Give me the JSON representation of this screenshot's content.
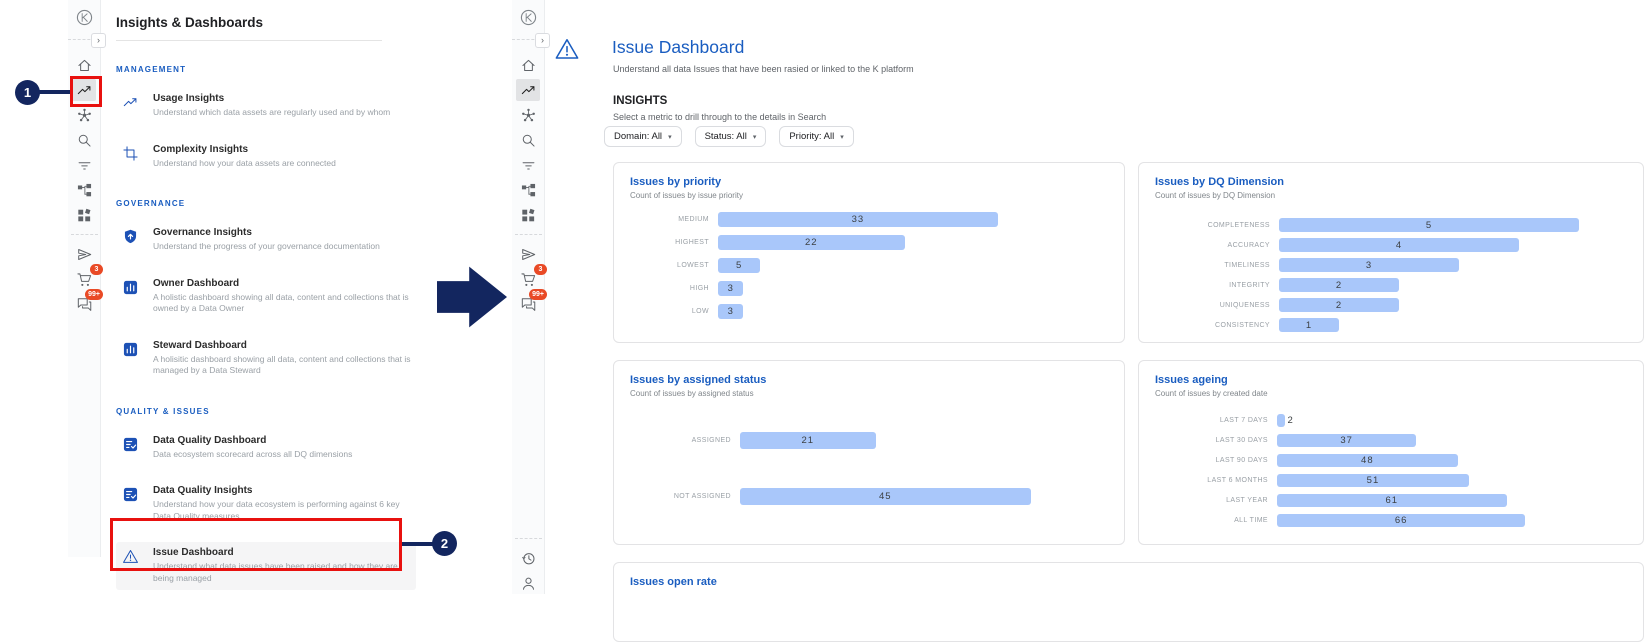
{
  "colors": {
    "accent_blue": "#1a5dc0",
    "menu_icon_blue": "#1d51b5",
    "bar_blue": "#a9c7fa",
    "navy": "#13265f",
    "annotation_red": "#e8110f",
    "badge_orange": "#e94a26"
  },
  "annotations": {
    "step_1": "1",
    "step_2": "2"
  },
  "left_screen": {
    "rail": {
      "items": [
        {
          "icon": "k-logo"
        },
        {
          "icon": "expand"
        },
        {
          "icon": "home"
        },
        {
          "icon": "trending",
          "active": true
        },
        {
          "icon": "hub"
        },
        {
          "icon": "search"
        },
        {
          "icon": "filter"
        },
        {
          "icon": "tree"
        },
        {
          "icon": "apps"
        },
        {
          "icon": "divider"
        },
        {
          "icon": "send"
        },
        {
          "icon": "cart",
          "badge": "3"
        },
        {
          "icon": "chat",
          "badge": "99+"
        }
      ]
    },
    "panel": {
      "title": "Insights & Dashboards",
      "sections": [
        {
          "header": "MANAGEMENT",
          "items": [
            {
              "icon": "trending",
              "title": "Usage Insights",
              "desc": "Understand which data assets are regularly used and by whom"
            },
            {
              "icon": "crop",
              "title": "Complexity Insights",
              "desc": "Understand how your data assets are connected"
            }
          ]
        },
        {
          "header": "GOVERNANCE",
          "items": [
            {
              "icon": "shield",
              "title": "Governance Insights",
              "desc": "Understand the progress of your governance documentation"
            },
            {
              "icon": "chart",
              "title": "Owner Dashboard",
              "desc": "A holistic dashboard showing all data, content and collections that is owned by a Data Owner"
            },
            {
              "icon": "chart",
              "title": "Steward Dashboard",
              "desc": "A holisitic dashboard showing all data, content and collections that is managed by a Data Steward"
            }
          ]
        },
        {
          "header": "QUALITY & ISSUES",
          "items": [
            {
              "icon": "checklist",
              "title": "Data Quality Dashboard",
              "desc": "Data ecosystem scorecard across all DQ dimensions"
            },
            {
              "icon": "checklist",
              "title": "Data Quality Insights",
              "desc": "Understand how your data ecosystem is performing against 6 key Data Quality measures"
            },
            {
              "icon": "warning",
              "title": "Issue Dashboard",
              "desc": "Understand what data issues have been raised and how they are being managed",
              "highlighted": true
            }
          ]
        }
      ]
    }
  },
  "right_screen": {
    "rail": {
      "items": [
        {
          "icon": "k-logo"
        },
        {
          "icon": "expand"
        },
        {
          "icon": "home"
        },
        {
          "icon": "trending",
          "active": true
        },
        {
          "icon": "hub"
        },
        {
          "icon": "search"
        },
        {
          "icon": "filter"
        },
        {
          "icon": "tree"
        },
        {
          "icon": "apps"
        },
        {
          "icon": "divider"
        },
        {
          "icon": "send"
        },
        {
          "icon": "cart",
          "badge": "3"
        },
        {
          "icon": "chat",
          "badge": "99+"
        },
        {
          "icon": "spacer"
        },
        {
          "icon": "divider"
        },
        {
          "icon": "history"
        },
        {
          "icon": "person"
        }
      ]
    },
    "page": {
      "title": "Issue Dashboard",
      "subtitle": "Understand all data Issues that have been rasied or linked to the K platform",
      "section_heading": "INSIGHTS",
      "section_subheading": "Select a metric to drill through to the details in Search",
      "filters": [
        "Domain: All",
        "Status: All",
        "Priority: All"
      ],
      "filter_caret": "▾"
    }
  },
  "chart_data": [
    {
      "type": "bar",
      "orientation": "horizontal",
      "title": "Issues by priority",
      "subtitle": "Count of issues by issue priority",
      "categories": [
        "MEDIUM",
        "HIGHEST",
        "LOWEST",
        "HIGH",
        "LOW"
      ],
      "values": [
        33,
        22,
        5,
        3,
        3
      ],
      "xlim": [
        0,
        46
      ],
      "grid": false,
      "legend": "none"
    },
    {
      "type": "bar",
      "orientation": "horizontal",
      "title": "Issues by DQ Dimension",
      "subtitle": "Count of issues by DQ Dimension",
      "categories": [
        "COMPLETENESS",
        "ACCURACY",
        "TIMELINESS",
        "INTEGRITY",
        "UNIQUENESS",
        "CONSISTENCY"
      ],
      "values": [
        5,
        4,
        3,
        2,
        2,
        1
      ],
      "xlim": [
        0,
        5.8
      ],
      "grid": false,
      "legend": "none"
    },
    {
      "type": "bar",
      "orientation": "horizontal",
      "title": "Issues by assigned status",
      "subtitle": "Count of issues by assigned status",
      "categories": [
        "ASSIGNED",
        "NOT ASSIGNED"
      ],
      "values": [
        21,
        45
      ],
      "xlim": [
        0,
        57
      ],
      "grid": false,
      "legend": "none"
    },
    {
      "type": "bar",
      "orientation": "horizontal",
      "title": "Issues ageing",
      "subtitle": "Count of issues by created date",
      "categories": [
        "LAST 7 DAYS",
        "LAST 30 DAYS",
        "LAST 90 DAYS",
        "LAST 6 MONTHS",
        "LAST YEAR",
        "ALL TIME"
      ],
      "values": [
        2,
        37,
        48,
        51,
        61,
        66
      ],
      "xlim": [
        0,
        93
      ],
      "grid": false,
      "legend": "none"
    },
    {
      "type": "bar",
      "title": "Issues open rate",
      "partially_visible": true
    }
  ]
}
